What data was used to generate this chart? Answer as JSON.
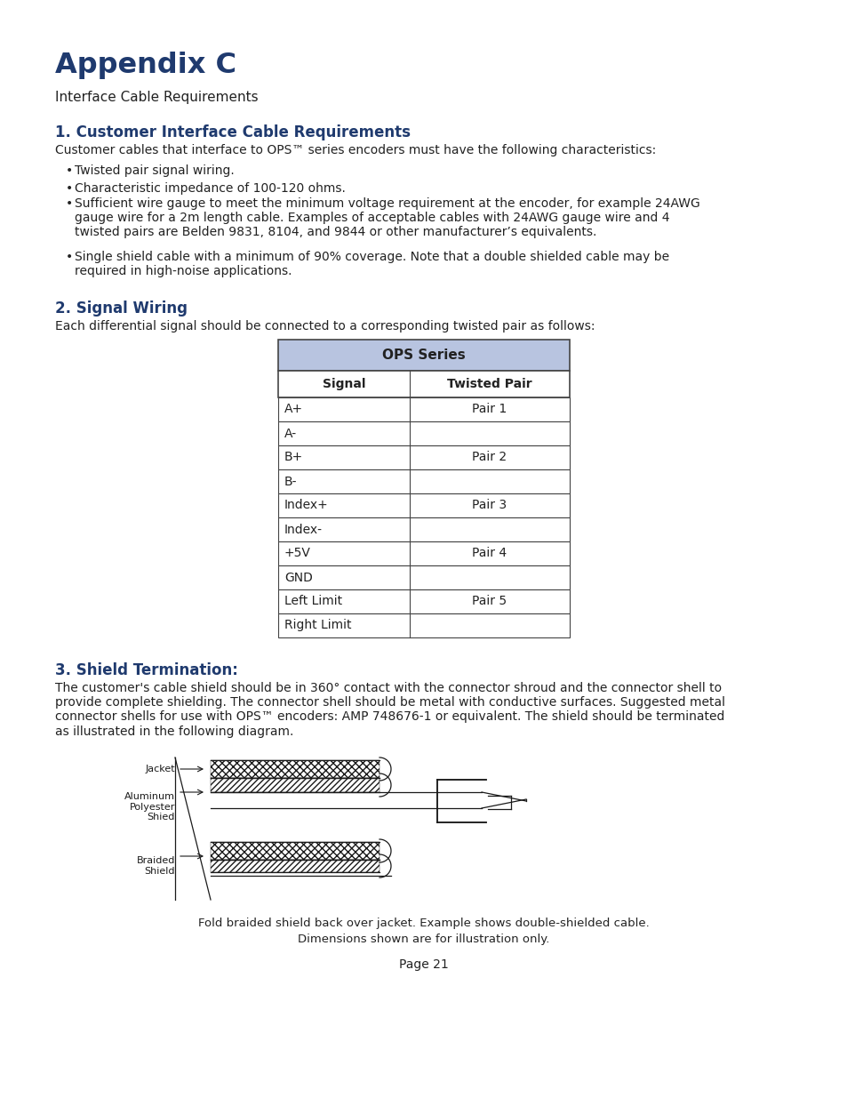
{
  "title": "Appendix C",
  "subtitle": "Interface Cable Requirements",
  "section1_title": "1. Customer Interface Cable Requirements",
  "section1_intro": "Customer cables that interface to OPS™ series encoders must have the following characteristics:",
  "bullets": [
    "Twisted pair signal wiring.",
    "Characteristic impedance of 100-120 ohms.",
    "Sufficient wire gauge to meet the minimum voltage requirement at the encoder, for example 24AWG\ngauge wire for a 2m length cable. Examples of acceptable cables with 24AWG gauge wire and 4\ntwisted pairs are Belden 9831, 8104, and 9844 or other manufacturer’s equivalents.",
    "Single shield cable with a minimum of 90% coverage. Note that a double shielded cable may be\nrequired in high-noise applications."
  ],
  "section2_title": "2. Signal Wiring",
  "section2_intro": "Each differential signal should be connected to a corresponding twisted pair as follows:",
  "table_header": "OPS Series",
  "table_col1": "Signal",
  "table_col2": "Twisted Pair",
  "table_rows": [
    [
      "A+",
      "Pair 1"
    ],
    [
      "A-",
      ""
    ],
    [
      "B+",
      "Pair 2"
    ],
    [
      "B-",
      ""
    ],
    [
      "Index+",
      "Pair 3"
    ],
    [
      "Index-",
      ""
    ],
    [
      "+5V",
      "Pair 4"
    ],
    [
      "GND",
      ""
    ],
    [
      "Left Limit",
      "Pair 5"
    ],
    [
      "Right Limit",
      ""
    ]
  ],
  "section3_title": "3. Shield Termination:",
  "section3_text": "The customer's cable shield should be in 360° contact with the connector shroud and the connector shell to\nprovide complete shielding. The connector shell should be metal with conductive surfaces. Suggested metal\nconnector shells for use with OPS™ encoders: AMP 748676-1 or equivalent. The shield should be terminated\nas illustrated in the following diagram.",
  "diagram_labels": {
    "jacket": "Jacket",
    "aluminum": "Aluminum\nPolyester\nShied",
    "braided": "Braided\nShield"
  },
  "caption_line1": "Fold braided shield back over jacket. Example shows double-shielded cable.",
  "caption_line2": "Dimensions shown are for illustration only.",
  "page": "Page 21",
  "title_color": "#1f3a6e",
  "section_title_color": "#1f3a6e",
  "header_bg_color": "#b8c4e0",
  "table_border_color": "#444444",
  "text_color": "#222222",
  "bg_color": "#ffffff"
}
